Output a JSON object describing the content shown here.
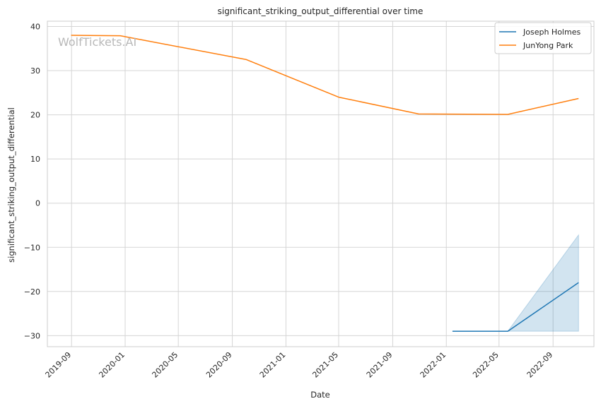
{
  "chart_data": {
    "type": "line",
    "title": "significant_striking_output_differential over time",
    "xlabel": "Date",
    "ylabel": "significant_striking_output_differential",
    "watermark": "WolfTickets.AI",
    "x_ticks": [
      "2019-09",
      "2020-01",
      "2020-05",
      "2020-09",
      "2021-01",
      "2021-05",
      "2021-09",
      "2022-01",
      "2022-05",
      "2022-09"
    ],
    "y_ticks": [
      -30,
      -20,
      -10,
      0,
      10,
      20,
      30,
      40
    ],
    "xlim": [
      "2019-07-08",
      "2022-12-03"
    ],
    "ylim": [
      -32.5,
      41.2
    ],
    "grid": true,
    "legend_position": "top-right",
    "series": [
      {
        "name": "Joseph Holmes",
        "color": "#1f77b4",
        "x": [
          "2022-01-15",
          "2022-05-21",
          "2022-10-29"
        ],
        "y": [
          -29,
          -29,
          -18
        ],
        "band": {
          "x": [
            "2022-05-21",
            "2022-10-29"
          ],
          "lower": [
            -29,
            -29
          ],
          "upper": [
            -29,
            -7.2
          ]
        }
      },
      {
        "name": "JunYong Park",
        "color": "#ff7f0e",
        "x": [
          "2019-08-31",
          "2019-12-21",
          "2020-10-03",
          "2021-05-01",
          "2021-10-30",
          "2022-05-21",
          "2022-10-29"
        ],
        "y": [
          38,
          37.9,
          32.5,
          24,
          20.2,
          20.1,
          23.7
        ]
      }
    ]
  }
}
